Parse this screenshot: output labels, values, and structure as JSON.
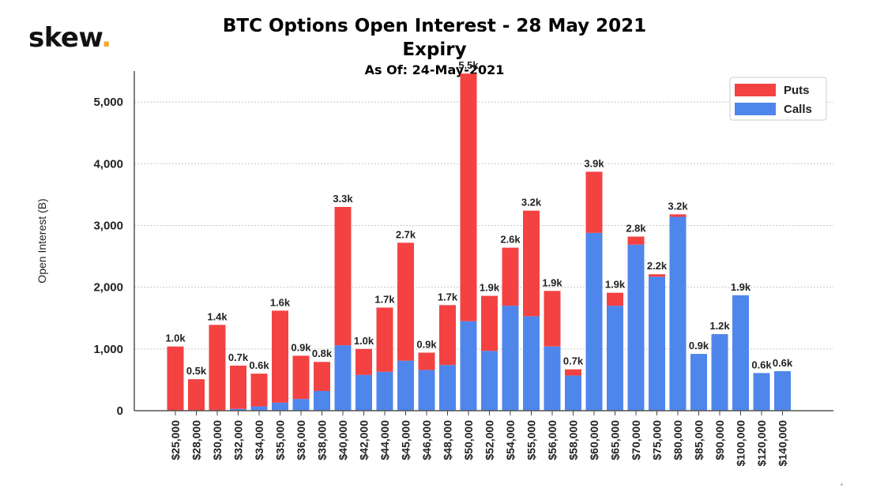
{
  "brand": {
    "name": "skew",
    "dot": "."
  },
  "chart_data": {
    "type": "bar",
    "stacked": true,
    "title": "BTC Options Open Interest - 28 May 2021 Expiry",
    "subtitle": "As Of: 24-May-2021",
    "xlabel": "",
    "ylabel": "Open Interest (B)",
    "ylim": [
      0,
      5500
    ],
    "yticks": [
      0,
      1000,
      2000,
      3000,
      4000,
      5000
    ],
    "ytick_labels": [
      "0",
      "1,000",
      "2,000",
      "3,000",
      "4,000",
      "5,000"
    ],
    "grid": true,
    "legend_position": "top-right",
    "categories": [
      "$25,000",
      "$28,000",
      "$30,000",
      "$32,000",
      "$34,000",
      "$35,000",
      "$36,000",
      "$38,000",
      "$40,000",
      "$42,000",
      "$44,000",
      "$45,000",
      "$46,000",
      "$48,000",
      "$50,000",
      "$52,000",
      "$54,000",
      "$55,000",
      "$56,000",
      "$58,000",
      "$60,000",
      "$65,000",
      "$70,000",
      "$75,000",
      "$80,000",
      "$85,000",
      "$90,000",
      "$100,000",
      "$120,000",
      "$140,000"
    ],
    "series": [
      {
        "name": "Calls",
        "color": "#4f86ec",
        "values": [
          0,
          0,
          0,
          30,
          70,
          130,
          190,
          320,
          1060,
          580,
          630,
          810,
          660,
          740,
          1450,
          970,
          1700,
          1530,
          1040,
          570,
          2880,
          1700,
          2690,
          2170,
          3140,
          920,
          1240,
          1870,
          610,
          640
        ]
      },
      {
        "name": "Puts",
        "color": "#f44242",
        "values": [
          1040,
          510,
          1390,
          700,
          530,
          1490,
          700,
          470,
          2240,
          420,
          1040,
          1910,
          280,
          970,
          4010,
          890,
          940,
          1710,
          900,
          100,
          990,
          210,
          130,
          40,
          40,
          0,
          0,
          0,
          0,
          0
        ]
      }
    ],
    "totals_labels": [
      "1.0k",
      "0.5k",
      "1.4k",
      "0.7k",
      "0.6k",
      "1.6k",
      "0.9k",
      "0.8k",
      "3.3k",
      "1.0k",
      "1.7k",
      "2.7k",
      "0.9k",
      "1.7k",
      "5.5k",
      "1.9k",
      "2.6k",
      "3.2k",
      "1.9k",
      "0.7k",
      "3.9k",
      "1.9k",
      "2.8k",
      "2.2k",
      "3.2k",
      "0.9k",
      "1.2k",
      "1.9k",
      "0.6k",
      "0.6k"
    ]
  }
}
